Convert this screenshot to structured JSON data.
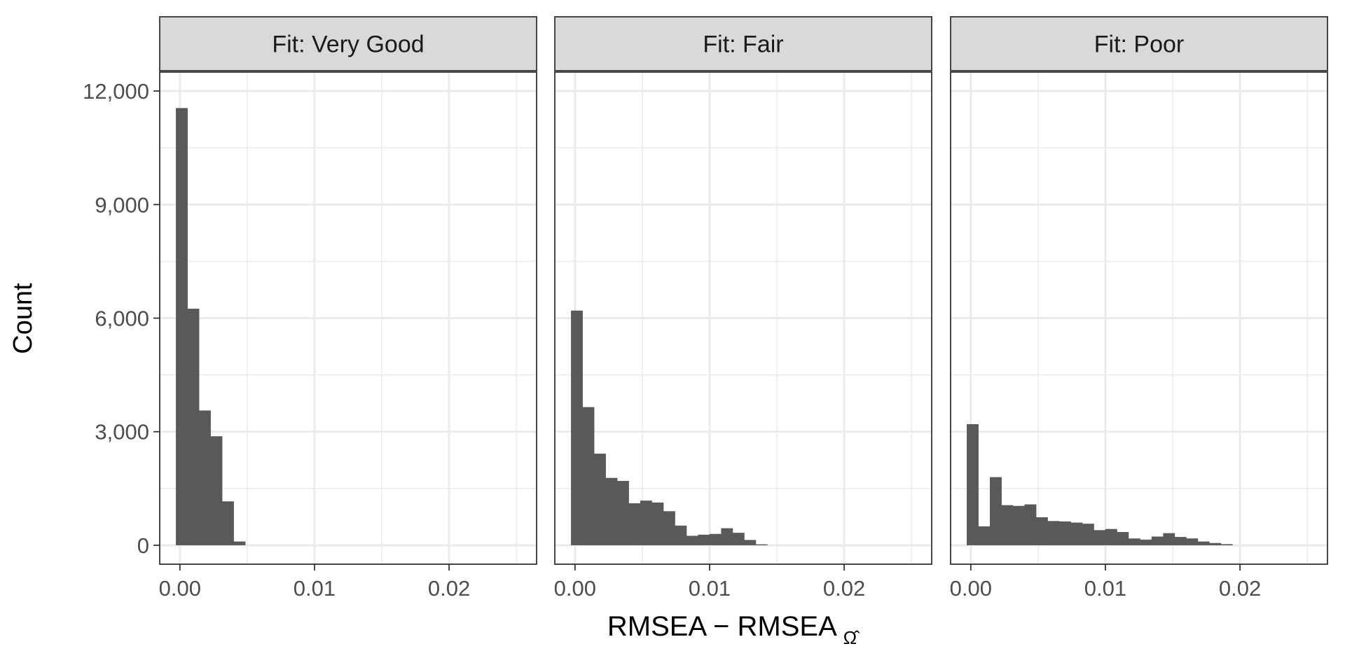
{
  "chart_data": {
    "type": "bar",
    "y_axis": {
      "label": "Count",
      "ticks": [
        0,
        3000,
        6000,
        9000,
        12000
      ],
      "tick_labels": [
        "0",
        "3,000",
        "6,000",
        "9,000",
        "12,000"
      ],
      "range": [
        -500,
        12500
      ]
    },
    "x_axis": {
      "label_main": "RMSEA − RMSEA",
      "label_subscript": "Ω̂",
      "ticks": [
        0.0,
        0.01,
        0.02
      ],
      "tick_labels": [
        "0.00",
        "0.01",
        "0.02"
      ],
      "range": [
        -0.0015,
        0.0265
      ]
    },
    "bin_width": 0.000858,
    "first_bin_left": -0.0003,
    "grid": true,
    "panels": [
      {
        "title": "Fit: Very Good",
        "values": [
          11550,
          6250,
          3560,
          2880,
          1160,
          100
        ]
      },
      {
        "title": "Fit: Fair",
        "values": [
          6200,
          3650,
          2420,
          1780,
          1700,
          1110,
          1180,
          1130,
          900,
          520,
          250,
          280,
          300,
          450,
          330,
          140,
          25
        ]
      },
      {
        "title": "Fit: Poor",
        "values": [
          3200,
          500,
          1800,
          1060,
          1040,
          1080,
          740,
          640,
          630,
          600,
          570,
          400,
          430,
          350,
          180,
          150,
          230,
          320,
          220,
          180,
          100,
          60,
          30
        ]
      }
    ]
  }
}
